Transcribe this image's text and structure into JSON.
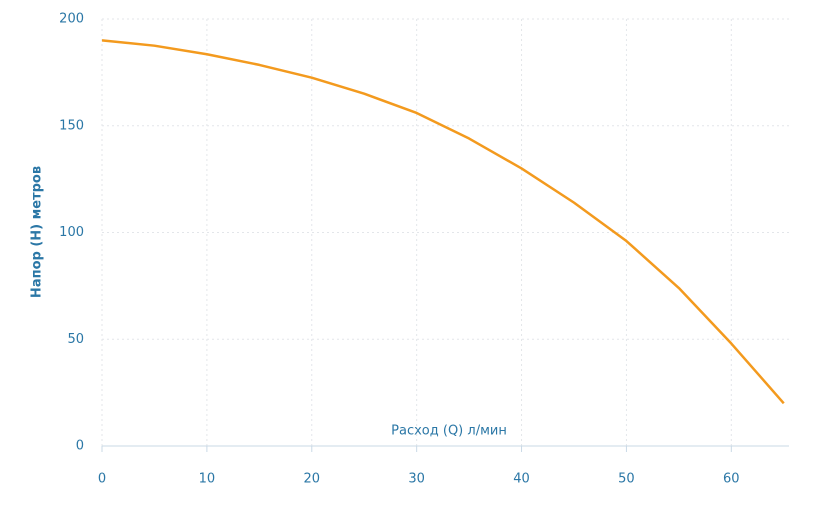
{
  "chart_data": {
    "type": "line",
    "x_label": "Расход (Q) л/мин",
    "y_label": "Напор (H) метров",
    "x": [
      0,
      5,
      10,
      15,
      20,
      25,
      30,
      35,
      40,
      45,
      50,
      55,
      60,
      65
    ],
    "series": [
      {
        "name": "H",
        "color": "#f39a1e",
        "values": [
          190,
          187.5,
          183.5,
          178.5,
          172.5,
          165,
          156,
          144,
          130,
          114,
          96,
          74,
          48,
          20
        ]
      }
    ],
    "xlim": [
      0,
      65.5
    ],
    "xticks": [
      0,
      10,
      20,
      30,
      40,
      50,
      60
    ],
    "ylim": [
      0,
      200
    ],
    "yticks": [
      0,
      50,
      100,
      150,
      200
    ],
    "grid": true
  }
}
